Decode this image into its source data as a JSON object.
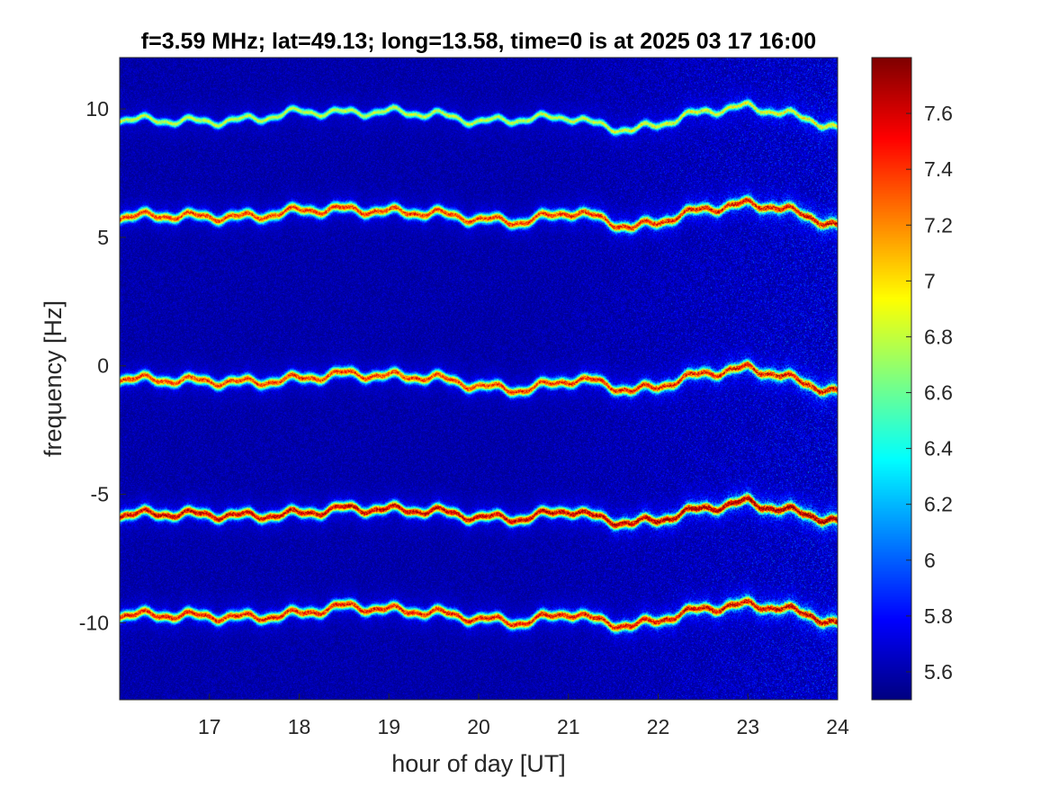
{
  "chart_data": {
    "type": "heatmap",
    "title": "f=3.59 MHz;  lat=49.13; long=13.58, time=0 is at 2025 03 17 16:00",
    "xlabel": "hour of day [UT]",
    "ylabel": "frequency [Hz]",
    "xlim": [
      16,
      24
    ],
    "ylim": [
      -13,
      12
    ],
    "xticks": [
      17,
      18,
      19,
      20,
      21,
      22,
      23,
      24
    ],
    "xtick_labels": [
      "17",
      "18",
      "19",
      "20",
      "21",
      "22",
      "23",
      "24"
    ],
    "yticks": [
      10,
      5,
      0,
      -5,
      -10
    ],
    "ytick_labels": [
      "10",
      "5",
      "0",
      "-5",
      "-10"
    ],
    "colormap": "jet",
    "colorbar": {
      "range": [
        5.5,
        7.8
      ],
      "ticks": [
        5.6,
        5.8,
        6,
        6.2,
        6.4,
        6.6,
        6.8,
        7,
        7.2,
        7.4,
        7.6
      ],
      "tick_labels": [
        "5.6",
        "5.8",
        "6",
        "6.2",
        "6.4",
        "6.6",
        "6.8",
        "7",
        "7.2",
        "7.4",
        "7.6"
      ]
    },
    "background_level": 5.55,
    "traces": [
      {
        "x": [
          16.0,
          16.5,
          17.0,
          17.5,
          18.0,
          18.5,
          19.0,
          19.5,
          20.0,
          20.5,
          21.0,
          21.3,
          21.7,
          22.0,
          22.5,
          23.0,
          23.3,
          23.7,
          24.0
        ],
        "y": [
          9.6,
          9.55,
          9.5,
          9.6,
          9.9,
          9.85,
          9.9,
          9.8,
          9.5,
          9.6,
          9.7,
          9.4,
          9.15,
          9.4,
          9.9,
          10.1,
          9.9,
          9.6,
          9.2
        ],
        "peak": 6.9
      },
      {
        "x": [
          16.0,
          16.5,
          17.0,
          17.5,
          18.0,
          18.5,
          19.0,
          19.5,
          20.0,
          20.5,
          21.0,
          21.3,
          21.7,
          22.0,
          22.5,
          23.0,
          23.3,
          23.7,
          24.0
        ],
        "y": [
          5.8,
          5.85,
          5.8,
          5.8,
          6.05,
          6.1,
          6.0,
          5.95,
          5.7,
          5.6,
          6.0,
          5.8,
          5.35,
          5.6,
          6.1,
          6.3,
          6.2,
          5.8,
          5.4
        ],
        "peak": 7.5
      },
      {
        "x": [
          16.0,
          16.5,
          17.0,
          17.5,
          18.0,
          18.5,
          19.0,
          19.5,
          20.0,
          20.5,
          21.0,
          21.3,
          21.7,
          22.0,
          22.5,
          23.0,
          23.3,
          23.7,
          24.0
        ],
        "y": [
          -0.5,
          -0.55,
          -0.6,
          -0.65,
          -0.5,
          -0.3,
          -0.4,
          -0.45,
          -0.8,
          -0.95,
          -0.55,
          -0.6,
          -1.0,
          -0.8,
          -0.3,
          -0.1,
          -0.3,
          -0.75,
          -1.05
        ],
        "peak": 7.5
      },
      {
        "x": [
          16.0,
          16.5,
          17.0,
          17.5,
          18.0,
          18.5,
          19.0,
          19.5,
          20.0,
          20.5,
          21.0,
          21.3,
          21.7,
          22.0,
          22.5,
          23.0,
          23.3,
          23.7,
          24.0
        ],
        "y": [
          -5.8,
          -5.75,
          -5.8,
          -5.85,
          -5.75,
          -5.55,
          -5.6,
          -5.65,
          -5.9,
          -5.95,
          -5.6,
          -5.9,
          -6.15,
          -6.0,
          -5.55,
          -5.3,
          -5.55,
          -5.8,
          -6.1
        ],
        "peak": 7.75
      },
      {
        "x": [
          16.0,
          16.5,
          17.0,
          17.5,
          18.0,
          18.5,
          19.0,
          19.5,
          20.0,
          20.5,
          21.0,
          21.3,
          21.7,
          22.0,
          22.5,
          23.0,
          23.3,
          23.7,
          24.0
        ],
        "y": [
          -9.7,
          -9.7,
          -9.75,
          -9.8,
          -9.65,
          -9.35,
          -9.5,
          -9.6,
          -9.85,
          -10.0,
          -9.6,
          -9.9,
          -10.15,
          -9.9,
          -9.45,
          -9.3,
          -9.4,
          -9.7,
          -10.1
        ],
        "peak": 7.6
      }
    ]
  }
}
